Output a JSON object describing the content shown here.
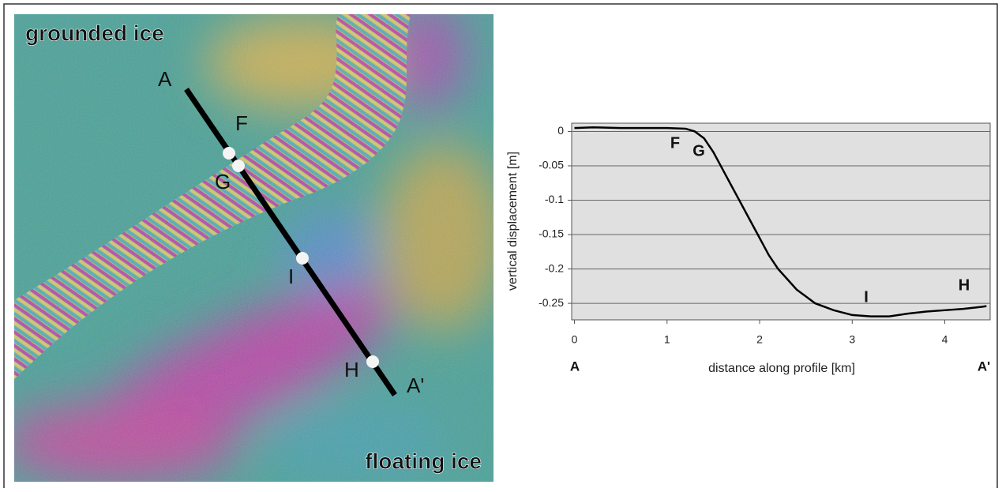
{
  "figure_labels": {
    "grounded": "grounded ice",
    "floating": "floating ice",
    "start": "A",
    "end": "A'",
    "points": [
      "F",
      "G",
      "I",
      "H"
    ]
  },
  "chart_data": {
    "type": "line",
    "ylabel": "vertical displacement [m]",
    "xlabel": "distance along profile [km]",
    "x_start_label": "A",
    "x_end_label": "A'",
    "annotations": [
      "F",
      "G",
      "I",
      "H"
    ],
    "xlim": [
      -0.03,
      4.49
    ],
    "ylim": [
      -0.274,
      0.012
    ],
    "xticks": [
      0,
      1,
      2,
      3,
      4
    ],
    "yticks": [
      0,
      -0.05,
      -0.1,
      -0.15,
      -0.2,
      -0.25
    ],
    "grid": true,
    "color": "#000000",
    "x": [
      0,
      0.2,
      0.5,
      1.0,
      1.2,
      1.3,
      1.4,
      1.5,
      1.6,
      1.7,
      1.8,
      1.9,
      2.0,
      2.1,
      2.2,
      2.3,
      2.4,
      2.5,
      2.6,
      2.8,
      3.0,
      3.2,
      3.4,
      3.6,
      3.8,
      4.0,
      4.2,
      4.4,
      4.45
    ],
    "values": [
      0.005,
      0.006,
      0.005,
      0.005,
      0.004,
      0.0,
      -0.01,
      -0.03,
      -0.055,
      -0.08,
      -0.105,
      -0.13,
      -0.155,
      -0.18,
      -0.2,
      -0.215,
      -0.23,
      -0.24,
      -0.25,
      -0.26,
      -0.267,
      -0.269,
      -0.269,
      -0.265,
      -0.262,
      -0.26,
      -0.258,
      -0.255,
      -0.254
    ]
  }
}
